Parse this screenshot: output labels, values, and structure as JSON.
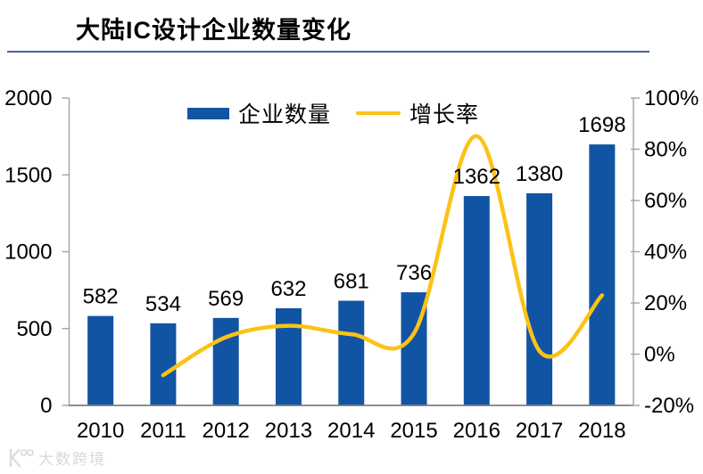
{
  "header": {
    "title": "大陆IC设计企业数量变化"
  },
  "legend": {
    "bars_label": "企业数量",
    "line_label": "增长率"
  },
  "watermark": {
    "text": "大数跨境"
  },
  "colors": {
    "bar": "#1254a4",
    "line": "#fcc216",
    "rule": "#44619e",
    "axis_side": "#a3a3a3",
    "axis_bottom": "#7d7d7d",
    "label_text": "#000000",
    "watermark": "#d9d9d9"
  },
  "chart_data": {
    "type": "bar+line combo",
    "title": "大陆IC设计企业数量变化",
    "categories": [
      "2010",
      "2011",
      "2012",
      "2013",
      "2014",
      "2015",
      "2016",
      "2017",
      "2018"
    ],
    "series": [
      {
        "name": "企业数量",
        "type": "bar",
        "axis": "left",
        "values": [
          582,
          534,
          569,
          632,
          681,
          736,
          1362,
          1380,
          1698
        ],
        "data_labels_visible": true
      },
      {
        "name": "增长率",
        "type": "line",
        "axis": "right",
        "unit": "%",
        "smooth": true,
        "values": [
          null,
          -8.2,
          6.6,
          11.1,
          7.8,
          8.1,
          85.1,
          1.3,
          23.0
        ],
        "data_labels_visible": false
      }
    ],
    "left_axis": {
      "min": 0,
      "max": 2000,
      "step": 500,
      "ticks": [
        "0",
        "500",
        "1000",
        "1500",
        "2000"
      ]
    },
    "right_axis": {
      "min": -20,
      "max": 100,
      "step": 20,
      "ticks": [
        "-20%",
        "0%",
        "20%",
        "40%",
        "60%",
        "80%",
        "100%"
      ]
    },
    "grid": false,
    "legend_position": "top-center"
  }
}
